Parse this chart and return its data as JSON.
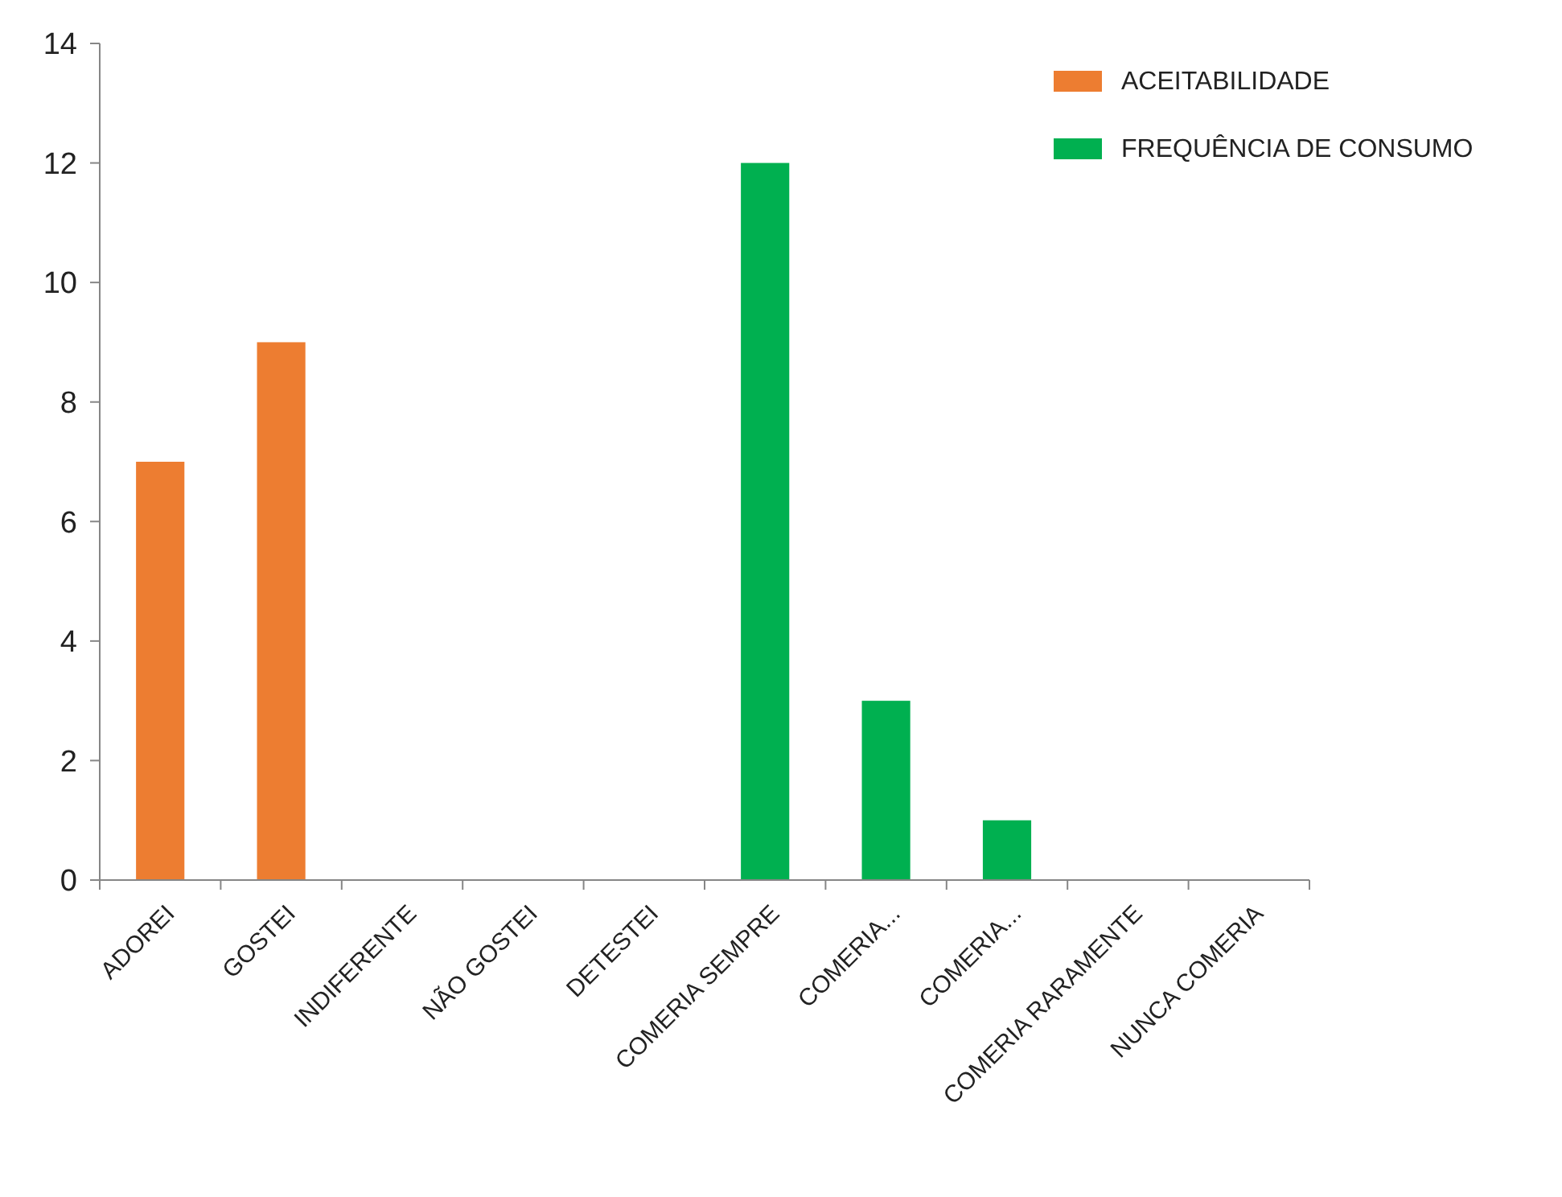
{
  "chart_data": {
    "type": "bar",
    "categories": [
      "ADOREI",
      "GOSTEI",
      "INDIFERENTE",
      "NÃO GOSTEI",
      "DETESTEI",
      "COMERIA SEMPRE",
      "COMERIA...",
      "COMERIA...",
      "COMERIA RARAMENTE",
      "NUNCA COMERIA"
    ],
    "series": [
      {
        "name": "ACEITABILIDADE",
        "color": "#ed7d31",
        "values": [
          7,
          9,
          0,
          0,
          0,
          null,
          null,
          null,
          null,
          null
        ]
      },
      {
        "name": "FREQUÊNCIA DE CONSUMO",
        "color": "#00b050",
        "values": [
          null,
          null,
          null,
          null,
          null,
          12,
          3,
          1,
          0,
          0
        ]
      }
    ],
    "ylim": [
      0,
      14
    ],
    "yticks": [
      0,
      2,
      4,
      6,
      8,
      10,
      12,
      14
    ],
    "grid": false,
    "legend": "top right"
  }
}
